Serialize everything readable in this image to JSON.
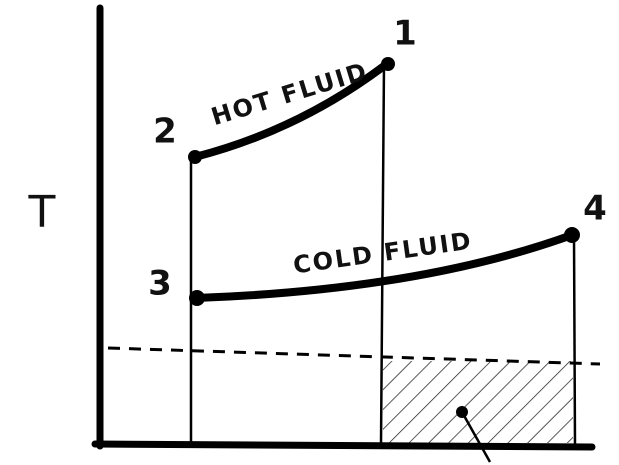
{
  "axis_label": "T",
  "points": [
    {
      "label": "1"
    },
    {
      "label": "2"
    },
    {
      "label": "3"
    },
    {
      "label": "4"
    }
  ],
  "curves": [
    {
      "label": "HOT FLUID"
    },
    {
      "label": "COLD FLUID"
    }
  ]
}
